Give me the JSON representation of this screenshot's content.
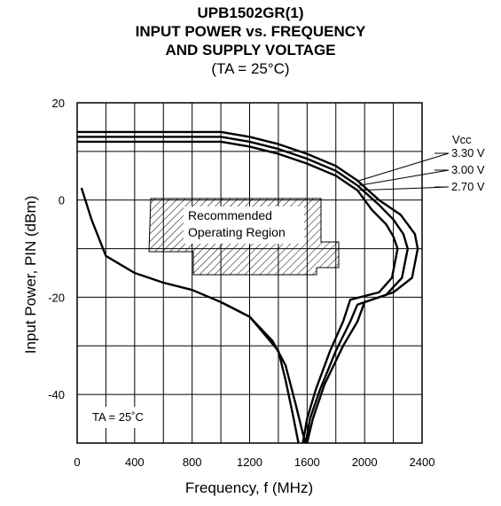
{
  "header": {
    "title_line1": "UPB1502GR(1)",
    "title_line2": "INPUT POWER vs. FREQUENCY",
    "title_line3": "AND SUPPLY VOLTAGE",
    "condition": "(TA = 25°C)"
  },
  "chart_data": {
    "type": "line",
    "xlabel": "Frequency, f (MHz)",
    "ylabel": "Input Power, PIN (dBm)",
    "xlim": [
      0,
      2400
    ],
    "ylim": [
      -50,
      20
    ],
    "xticks": [
      "0",
      "400",
      "800",
      "1200",
      "1600",
      "2000",
      "2400"
    ],
    "yticks": [
      "20",
      "0",
      "-20",
      "-40"
    ],
    "grid": true,
    "legend_title": "Vcc",
    "series": [
      {
        "name": "3.30 V",
        "points": [
          [
            0,
            14
          ],
          [
            400,
            14
          ],
          [
            800,
            14
          ],
          [
            1000,
            14
          ],
          [
            1200,
            13
          ],
          [
            1400,
            11.5
          ],
          [
            1600,
            9.5
          ],
          [
            1800,
            7
          ],
          [
            1950,
            4
          ],
          [
            2100,
            0
          ],
          [
            2250,
            -3
          ],
          [
            2350,
            -7
          ],
          [
            2370,
            -10
          ],
          [
            2330,
            -16
          ],
          [
            2200,
            -19
          ],
          [
            2000,
            -21
          ],
          [
            1950,
            -25
          ],
          [
            1850,
            -30
          ],
          [
            1720,
            -38
          ],
          [
            1640,
            -45
          ],
          [
            1600,
            -50
          ]
        ]
      },
      {
        "name": "3.00 V",
        "points": [
          [
            0,
            13
          ],
          [
            400,
            13
          ],
          [
            800,
            13
          ],
          [
            1000,
            13
          ],
          [
            1200,
            12
          ],
          [
            1400,
            10.5
          ],
          [
            1600,
            8.5
          ],
          [
            1800,
            6
          ],
          [
            1950,
            3
          ],
          [
            2100,
            -1
          ],
          [
            2200,
            -4
          ],
          [
            2270,
            -7
          ],
          [
            2300,
            -10
          ],
          [
            2260,
            -16
          ],
          [
            2150,
            -19.5
          ],
          [
            1950,
            -21.5
          ],
          [
            1900,
            -25
          ],
          [
            1800,
            -31
          ],
          [
            1690,
            -39
          ],
          [
            1620,
            -45
          ],
          [
            1590,
            -50
          ]
        ]
      },
      {
        "name": "2.70 V",
        "points": [
          [
            0,
            12
          ],
          [
            400,
            12
          ],
          [
            800,
            12
          ],
          [
            1000,
            12
          ],
          [
            1200,
            11
          ],
          [
            1400,
            9.5
          ],
          [
            1600,
            7.5
          ],
          [
            1800,
            5
          ],
          [
            1950,
            2
          ],
          [
            2050,
            -2
          ],
          [
            2150,
            -5
          ],
          [
            2200,
            -7.5
          ],
          [
            2230,
            -10
          ],
          [
            2190,
            -16
          ],
          [
            2100,
            -19
          ],
          [
            1900,
            -20.5
          ],
          [
            1850,
            -25
          ],
          [
            1760,
            -31
          ],
          [
            1660,
            -39
          ],
          [
            1600,
            -45
          ],
          [
            1570,
            -50
          ]
        ]
      },
      {
        "name": "",
        "points": [
          [
            30,
            2.5
          ],
          [
            100,
            -4
          ],
          [
            200,
            -11.5
          ],
          [
            400,
            -15
          ],
          [
            600,
            -17
          ],
          [
            800,
            -18.5
          ],
          [
            1000,
            -21
          ],
          [
            1200,
            -24
          ],
          [
            1400,
            -31
          ],
          [
            1450,
            -37
          ],
          [
            1500,
            -44
          ],
          [
            1540,
            -50
          ]
        ]
      },
      {
        "name": "",
        "points": [
          [
            1000,
            -21
          ],
          [
            1200,
            -24
          ],
          [
            1360,
            -29
          ],
          [
            1450,
            -34
          ],
          [
            1520,
            -42
          ],
          [
            1570,
            -48
          ],
          [
            1590,
            -50
          ]
        ]
      }
    ],
    "annotations": {
      "region_line1": "Recommended",
      "region_line2": "Operating Region",
      "ta_label": "TA = 25˚C"
    }
  }
}
